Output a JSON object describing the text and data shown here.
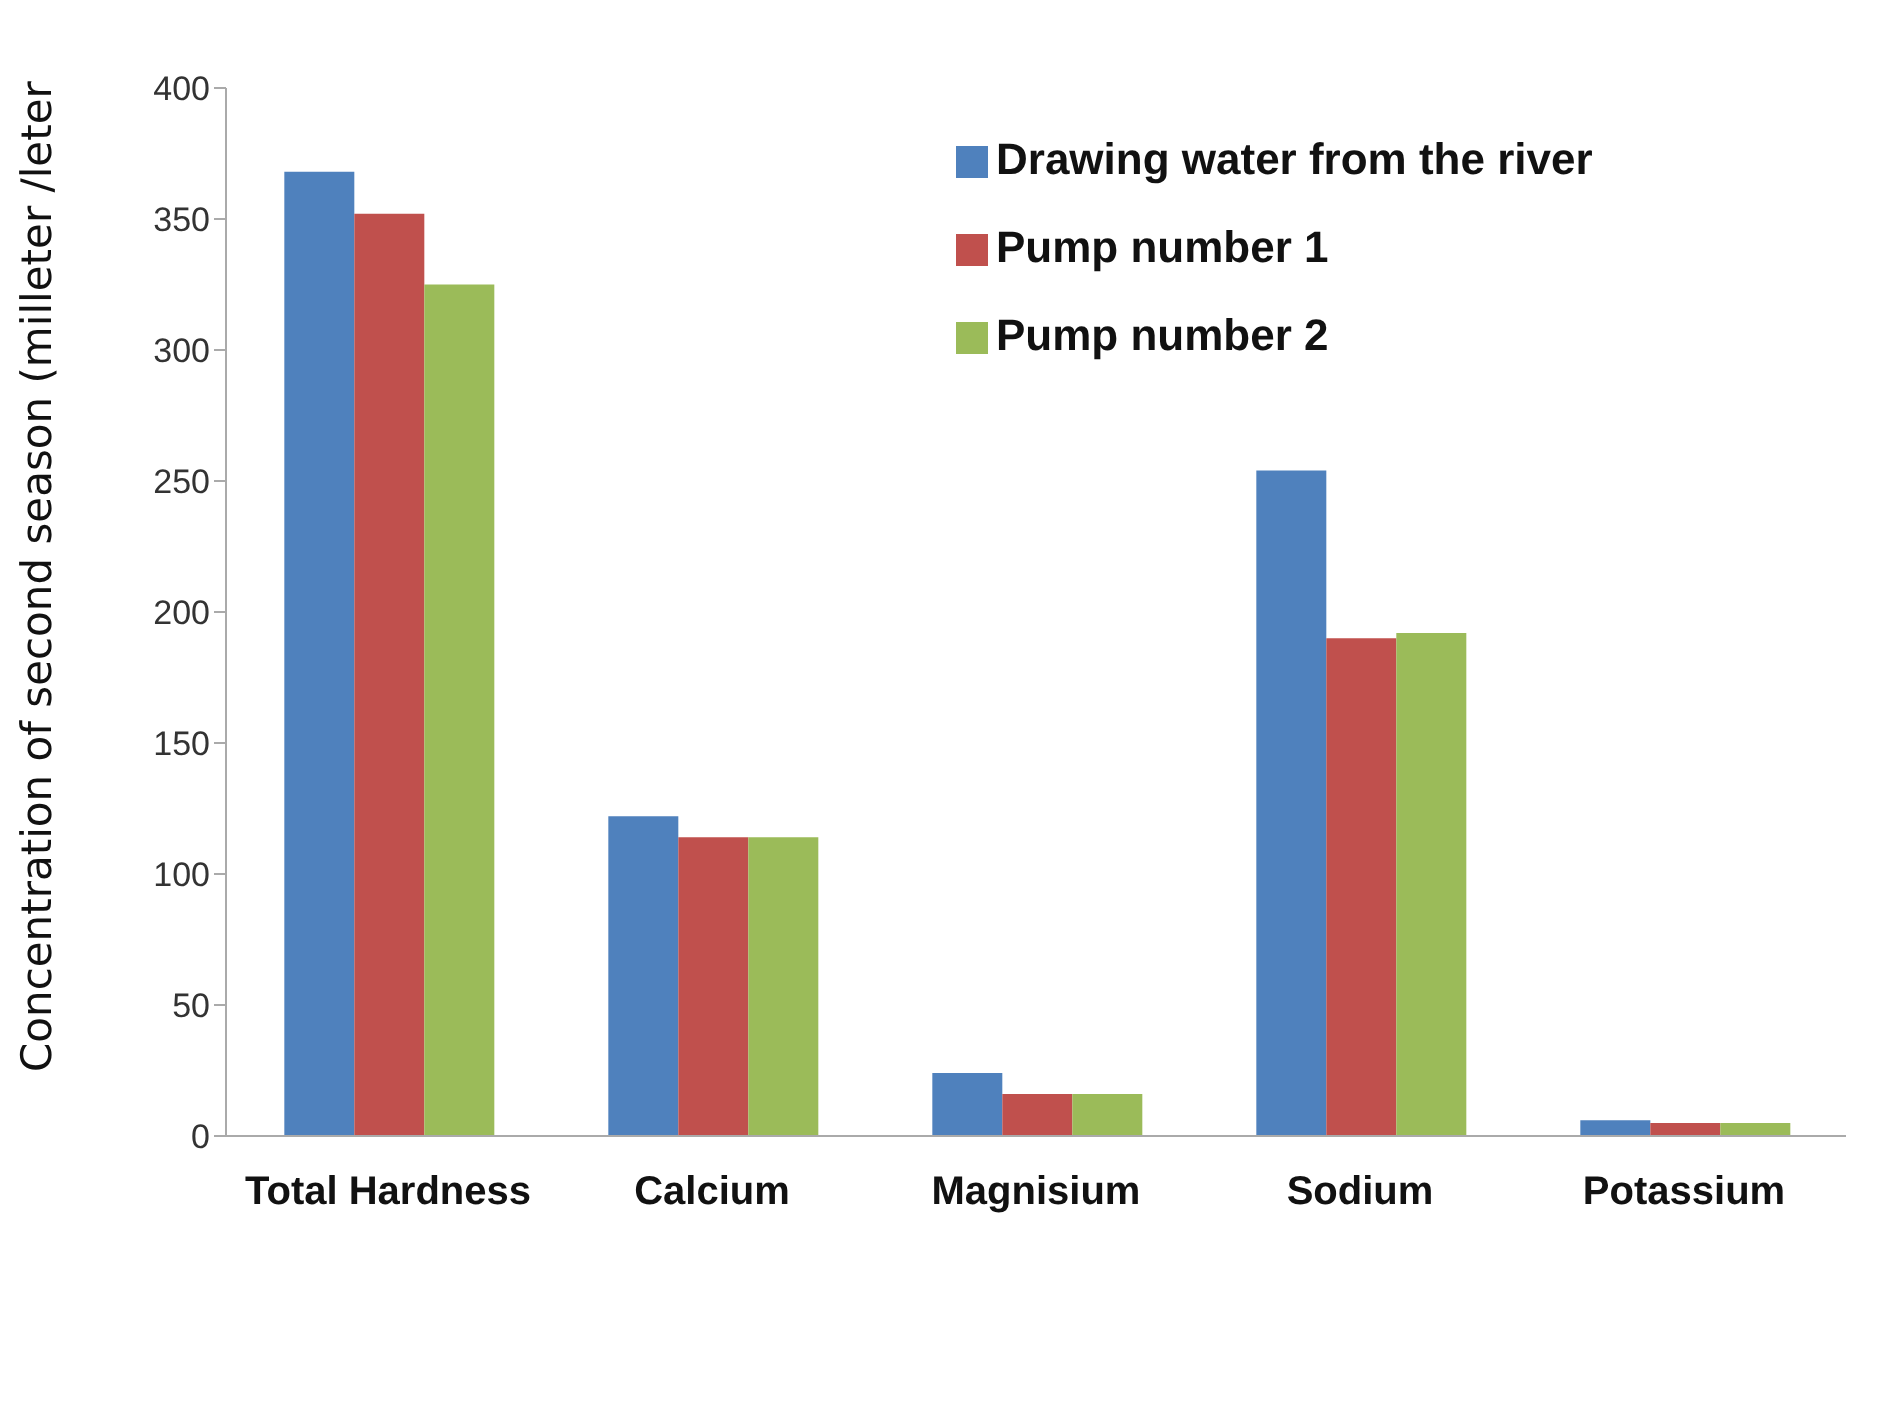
{
  "chart_data": {
    "type": "bar",
    "ylabel": "Concentration of second  season (milleter /leter",
    "categories": [
      "Total Hardness",
      "Calcium",
      "Magnisium",
      "Sodium",
      "Potassium"
    ],
    "series": [
      {
        "name": "Drawing water from the river",
        "color": "#4f81bd",
        "values": [
          368,
          122,
          24,
          254,
          6
        ]
      },
      {
        "name": "Pump number 1",
        "color": "#c0504d",
        "values": [
          352,
          114,
          16,
          190,
          5
        ]
      },
      {
        "name": "Pump number 2",
        "color": "#9bbb59",
        "values": [
          325,
          114,
          16,
          192,
          5
        ]
      }
    ],
    "ylim": [
      0,
      400
    ],
    "yticks": [
      0,
      50,
      100,
      150,
      200,
      250,
      300,
      350,
      400
    ],
    "grid": false,
    "legend": "top right"
  }
}
